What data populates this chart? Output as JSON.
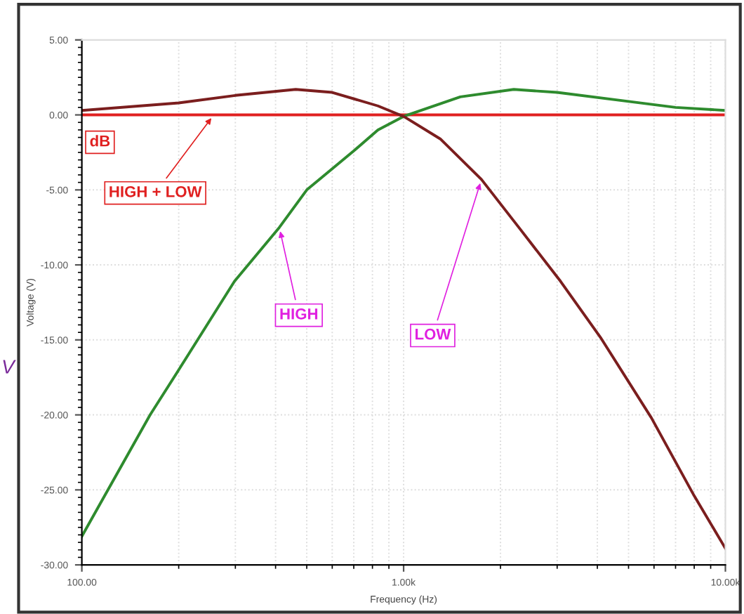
{
  "chart_data": {
    "type": "line",
    "xlabel": "Frequency (Hz)",
    "ylabel": "Voltage (V)",
    "log": "x",
    "xlim": [
      100,
      10000
    ],
    "xticks": [
      {
        "value": 100,
        "label": "100.00"
      },
      {
        "value": 1000,
        "label": "1.00k"
      },
      {
        "value": 10000,
        "label": "10.00k"
      }
    ],
    "ylim": [
      -30,
      5
    ],
    "yticks": [
      {
        "value": 5,
        "label": "5.00"
      },
      {
        "value": 0,
        "label": "0.00"
      },
      {
        "value": -5,
        "label": "-5.00"
      },
      {
        "value": -10,
        "label": "-10.00"
      },
      {
        "value": -15,
        "label": "-15.00"
      },
      {
        "value": -20,
        "label": "-20.00"
      },
      {
        "value": -25,
        "label": "-25.00"
      },
      {
        "value": -30,
        "label": "-30.00"
      }
    ],
    "grid": true,
    "legend": false,
    "marker": "none",
    "line_style": "solid",
    "series": [
      {
        "color": "#e02020",
        "x": [
          100,
          10000
        ],
        "values": [
          0,
          0
        ]
      },
      {
        "color": "#2e8b2e",
        "x": [
          100,
          163,
          200,
          298,
          411,
          500,
          700,
          832,
          1000,
          1500,
          2200,
          3000,
          5000,
          7000,
          10000
        ],
        "values": [
          -28.1,
          -20.0,
          -17.0,
          -11.1,
          -7.5,
          -5.0,
          -2.4,
          -1.0,
          -0.1,
          1.2,
          1.7,
          1.5,
          0.9,
          0.5,
          0.3
        ]
      },
      {
        "color": "#7b1e1e",
        "x": [
          100,
          200,
          300,
          462,
          600,
          832,
          1000,
          1300,
          1745,
          2300,
          3075,
          4110,
          5890,
          8000,
          10000
        ],
        "values": [
          0.3,
          0.8,
          1.3,
          1.7,
          1.5,
          0.6,
          -0.1,
          -1.6,
          -4.3,
          -7.6,
          -11.1,
          -14.9,
          -20.2,
          -25.4,
          -28.9
        ]
      }
    ],
    "annotations": [
      {
        "text": "HIGH + LOW",
        "x": 257,
        "y": 0
      },
      {
        "text": "HIGH",
        "x": 411,
        "y": -7.5
      },
      {
        "text": "LOW",
        "x": 1745,
        "y": -4.3
      },
      "dB",
      "V"
    ]
  }
}
